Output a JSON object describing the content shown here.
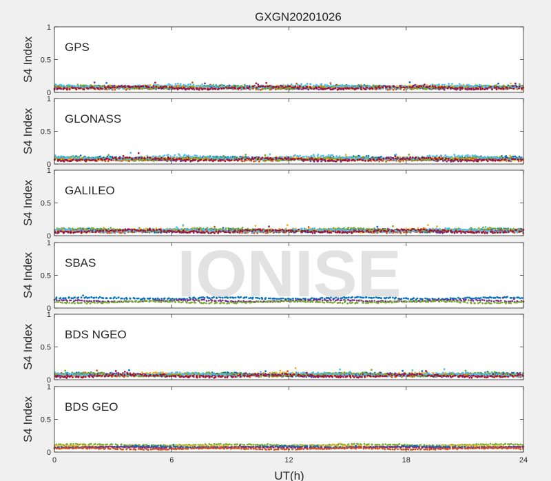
{
  "figure": {
    "title": "GXGN20201026",
    "xlabel": "UT(h)",
    "watermark": "IONISE"
  },
  "chart_data": [
    {
      "type": "scatter",
      "panel_label": "GPS",
      "ylabel": "S4 Index",
      "xlim": [
        0,
        24
      ],
      "ylim": [
        0,
        1
      ],
      "xticks": [
        "0",
        "6",
        "12",
        "18",
        "24"
      ],
      "yticks": [
        "0",
        "0.5",
        "1"
      ],
      "series": [
        {
          "color": "#0072bd",
          "y_mean": 0.08,
          "y_spread": 0.03
        },
        {
          "color": "#d95319",
          "y_mean": 0.07,
          "y_spread": 0.03
        },
        {
          "color": "#edb120",
          "y_mean": 0.08,
          "y_spread": 0.03
        },
        {
          "color": "#7e2f8e",
          "y_mean": 0.07,
          "y_spread": 0.03
        },
        {
          "color": "#77ac30",
          "y_mean": 0.08,
          "y_spread": 0.03
        },
        {
          "color": "#4dbeee",
          "y_mean": 0.09,
          "y_spread": 0.04
        },
        {
          "color": "#a2142f",
          "y_mean": 0.07,
          "y_spread": 0.03
        }
      ]
    },
    {
      "type": "scatter",
      "panel_label": "GLONASS",
      "ylabel": "S4 Index",
      "xlim": [
        0,
        24
      ],
      "ylim": [
        0,
        1
      ],
      "xticks": [
        "0",
        "6",
        "12",
        "18",
        "24"
      ],
      "yticks": [
        "0",
        "0.5",
        "1"
      ],
      "series": [
        {
          "color": "#0072bd",
          "y_mean": 0.09,
          "y_spread": 0.03
        },
        {
          "color": "#d95319",
          "y_mean": 0.07,
          "y_spread": 0.03
        },
        {
          "color": "#edb120",
          "y_mean": 0.08,
          "y_spread": 0.03
        },
        {
          "color": "#7e2f8e",
          "y_mean": 0.07,
          "y_spread": 0.03
        },
        {
          "color": "#77ac30",
          "y_mean": 0.08,
          "y_spread": 0.03
        },
        {
          "color": "#4dbeee",
          "y_mean": 0.1,
          "y_spread": 0.04
        },
        {
          "color": "#a2142f",
          "y_mean": 0.07,
          "y_spread": 0.03
        }
      ]
    },
    {
      "type": "scatter",
      "panel_label": "GALILEO",
      "ylabel": "S4 Index",
      "xlim": [
        0,
        24
      ],
      "ylim": [
        0,
        1
      ],
      "xticks": [
        "0",
        "6",
        "12",
        "18",
        "24"
      ],
      "yticks": [
        "0",
        "0.5",
        "1"
      ],
      "series": [
        {
          "color": "#0072bd",
          "y_mean": 0.08,
          "y_spread": 0.03
        },
        {
          "color": "#d95319",
          "y_mean": 0.07,
          "y_spread": 0.03
        },
        {
          "color": "#edb120",
          "y_mean": 0.08,
          "y_spread": 0.03
        },
        {
          "color": "#7e2f8e",
          "y_mean": 0.07,
          "y_spread": 0.03
        },
        {
          "color": "#77ac30",
          "y_mean": 0.09,
          "y_spread": 0.03
        },
        {
          "color": "#4dbeee",
          "y_mean": 0.08,
          "y_spread": 0.03
        },
        {
          "color": "#a2142f",
          "y_mean": 0.07,
          "y_spread": 0.03
        }
      ]
    },
    {
      "type": "scatter",
      "panel_label": "SBAS",
      "ylabel": "S4 Index",
      "xlim": [
        0,
        24
      ],
      "ylim": [
        0,
        1
      ],
      "xticks": [
        "0",
        "6",
        "12",
        "18",
        "24"
      ],
      "yticks": [
        "0",
        "0.5",
        "1"
      ],
      "series": [
        {
          "color": "#0072bd",
          "y_mean": 0.15,
          "y_spread": 0.02
        },
        {
          "color": "#7e2f8e",
          "y_mean": 0.11,
          "y_spread": 0.02
        },
        {
          "color": "#77ac30",
          "y_mean": 0.09,
          "y_spread": 0.02
        }
      ]
    },
    {
      "type": "scatter",
      "panel_label": "BDS NGEO",
      "ylabel": "S4 Index",
      "xlim": [
        0,
        24
      ],
      "ylim": [
        0,
        1
      ],
      "xticks": [
        "0",
        "6",
        "12",
        "18",
        "24"
      ],
      "yticks": [
        "0",
        "0.5",
        "1"
      ],
      "series": [
        {
          "color": "#0072bd",
          "y_mean": 0.08,
          "y_spread": 0.03
        },
        {
          "color": "#d95319",
          "y_mean": 0.07,
          "y_spread": 0.03
        },
        {
          "color": "#edb120",
          "y_mean": 0.08,
          "y_spread": 0.03
        },
        {
          "color": "#7e2f8e",
          "y_mean": 0.07,
          "y_spread": 0.03
        },
        {
          "color": "#77ac30",
          "y_mean": 0.08,
          "y_spread": 0.03
        },
        {
          "color": "#4dbeee",
          "y_mean": 0.08,
          "y_spread": 0.03
        },
        {
          "color": "#a2142f",
          "y_mean": 0.06,
          "y_spread": 0.03
        }
      ]
    },
    {
      "type": "scatter",
      "panel_label": "BDS GEO",
      "ylabel": "S4 Index",
      "xlim": [
        0,
        24
      ],
      "ylim": [
        0,
        1
      ],
      "xticks": [
        "0",
        "6",
        "12",
        "18",
        "24"
      ],
      "yticks": [
        "0",
        "0.5",
        "1"
      ],
      "series": [
        {
          "color": "#77ac30",
          "y_mean": 0.11,
          "y_spread": 0.015
        },
        {
          "color": "#edb120",
          "y_mean": 0.09,
          "y_spread": 0.015
        },
        {
          "color": "#0072bd",
          "y_mean": 0.08,
          "y_spread": 0.015
        },
        {
          "color": "#7e2f8e",
          "y_mean": 0.07,
          "y_spread": 0.015
        },
        {
          "color": "#d95319",
          "y_mean": 0.05,
          "y_spread": 0.015
        }
      ]
    }
  ]
}
